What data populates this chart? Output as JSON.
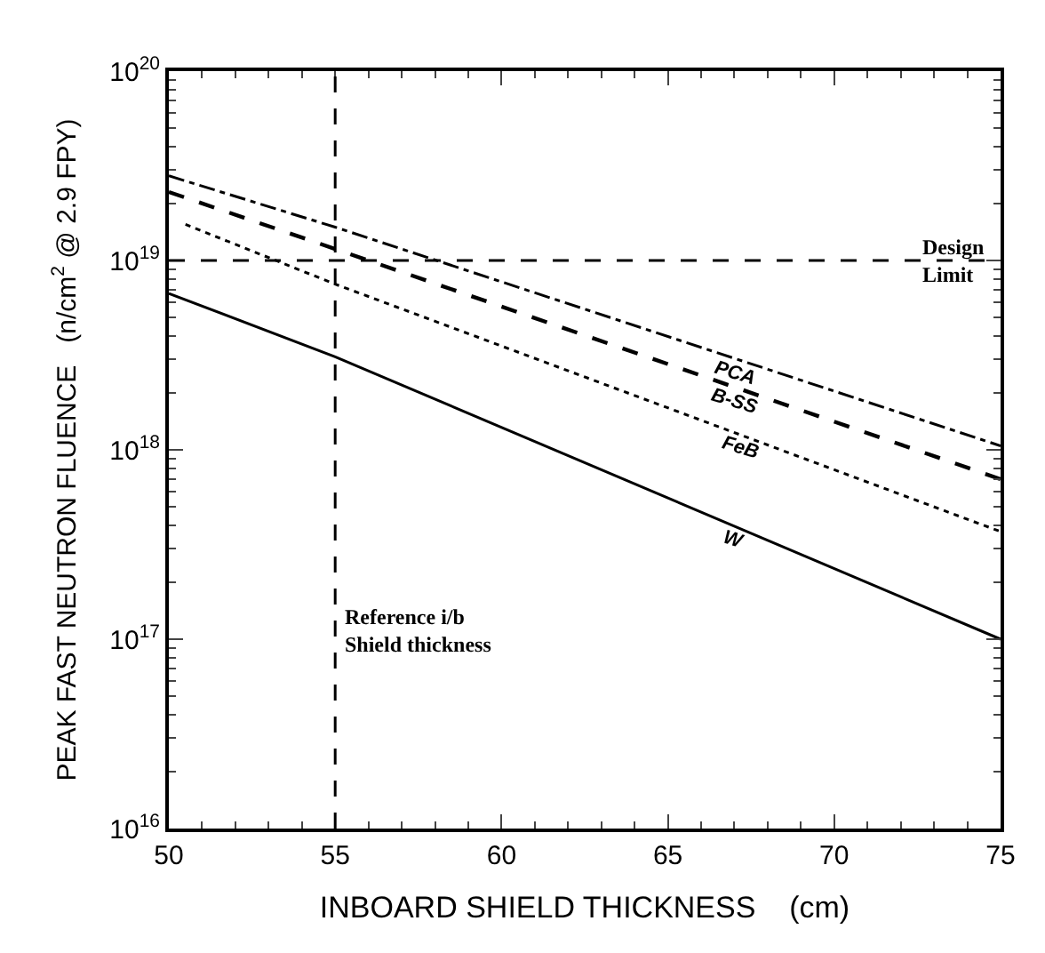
{
  "chart_data": {
    "type": "line",
    "xlabel": "INBOARD SHIELD THICKNESS    (cm)",
    "ylabel": "PEAK FAST NEUTRON FLUENCE   (n/cm$^{2}$ @ 2.9 FPY)",
    "log": "y",
    "xlim": [
      50,
      75
    ],
    "xticks": [
      50,
      55,
      60,
      65,
      70,
      75
    ],
    "ylim": [
      1e+16,
      1e+20
    ],
    "yticks": [
      {
        "value": 1e+16,
        "label": "10$^{16}$"
      },
      {
        "value": 1e+17,
        "label": "10$^{17}$"
      },
      {
        "value": 1e+18,
        "label": "10$^{18}$"
      },
      {
        "value": 1e+19,
        "label": "10$^{19}$"
      },
      {
        "value": 1e+20,
        "label": "10$^{20}$"
      }
    ],
    "legend": false,
    "marker": "none",
    "series": [
      {
        "name": "PCA",
        "color": "#000000",
        "line_style": "dashdot",
        "x": [
          50,
          55,
          75
        ],
        "values": [
          2.8e+19,
          1.5e+19,
          1.05e+18
        ]
      },
      {
        "name": "B-SS",
        "color": "#000000",
        "line_style": "dashed",
        "x": [
          50,
          55,
          75
        ],
        "values": [
          2.3e+19,
          1.15e+19,
          7e+17
        ]
      },
      {
        "name": "FeB",
        "color": "#000000",
        "line_style": "dotted",
        "x": [
          50.5,
          55,
          75
        ],
        "values": [
          1.55e+19,
          7.5e+18,
          3.7e+17
        ]
      },
      {
        "name": "W",
        "color": "#000000",
        "line_style": "solid",
        "x": [
          50,
          55,
          75
        ],
        "values": [
          6.7e+18,
          3.1e+18,
          1e+17
        ]
      }
    ],
    "ref_lines": [
      {
        "axis": "y",
        "value": 1e+19,
        "label": "Design\nLimit",
        "line_style": "dashed"
      },
      {
        "axis": "x",
        "value": 55,
        "label": "Reference i/b\nShield thickness",
        "line_style": "dashed"
      }
    ]
  }
}
